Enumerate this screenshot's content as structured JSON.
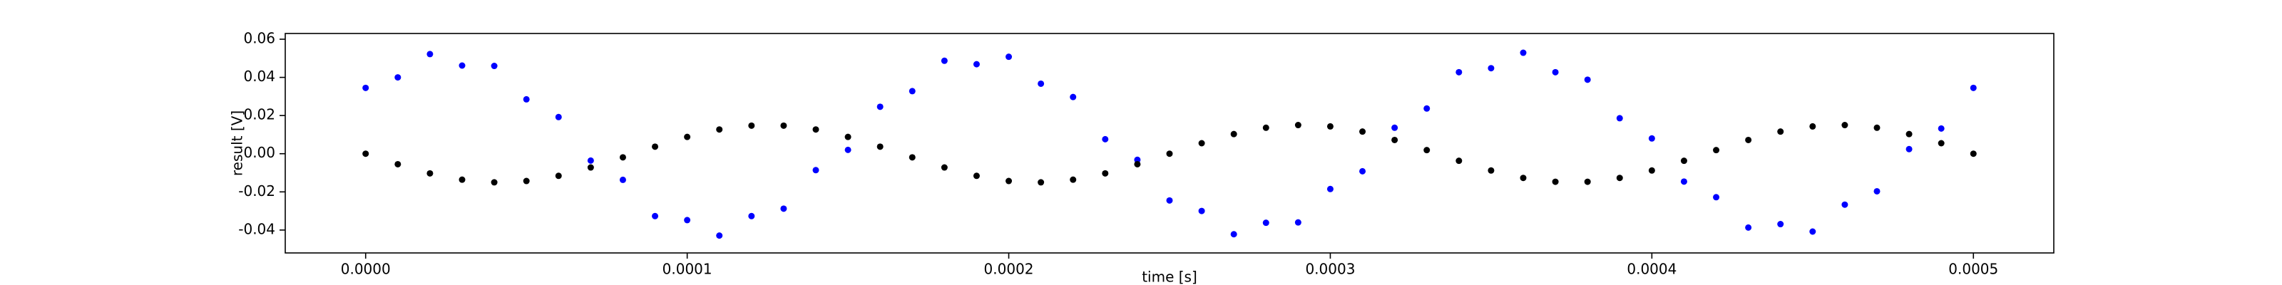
{
  "chart_data": {
    "type": "scatter",
    "xlabel": "time [s]",
    "ylabel": "result [V]",
    "x": [
      0,
      1e-05,
      2e-05,
      3e-05,
      4e-05,
      5e-05,
      6e-05,
      7e-05,
      8e-05,
      9e-05,
      0.0001,
      0.00011,
      0.00012,
      0.00013,
      0.00014,
      0.00015,
      0.00016,
      0.00017,
      0.00018,
      0.00019,
      0.0002,
      0.00021,
      0.00022,
      0.00023,
      0.00024,
      0.00025,
      0.00026,
      0.00027,
      0.00028,
      0.00029,
      0.0003,
      0.00031,
      0.00032,
      0.00033,
      0.00034,
      0.00035,
      0.00036,
      0.00037,
      0.00038,
      0.00039,
      0.0004,
      0.00041,
      0.00042,
      0.00043,
      0.00044,
      0.00045,
      0.00046,
      0.00047,
      0.00048,
      0.00049,
      0.0005
    ],
    "series": [
      {
        "color": "#0000ff",
        "values": [
          0.0345,
          0.04,
          0.0522,
          0.0462,
          0.046,
          0.0285,
          0.0192,
          -0.0036,
          -0.0137,
          -0.0327,
          -0.0348,
          -0.0429,
          -0.0327,
          -0.0288,
          -0.0086,
          0.002,
          0.0246,
          0.0328,
          0.0487,
          0.0469,
          0.0508,
          0.0367,
          0.0297,
          0.0076,
          -0.0032,
          -0.0245,
          -0.03,
          -0.0422,
          -0.0362,
          -0.036,
          -0.0185,
          -0.0092,
          0.0136,
          0.0237,
          0.0427,
          0.0448,
          0.0529,
          0.0427,
          0.0388,
          0.0186,
          0.008,
          -0.0146,
          -0.0228,
          -0.0387,
          -0.0369,
          -0.0408,
          -0.0267,
          -0.0197,
          0.0024,
          0.0132,
          0.0345
        ]
      },
      {
        "color": "#000000",
        "values": [
          0,
          -0.0055,
          -0.0103,
          -0.0136,
          -0.015,
          -0.0143,
          -0.0116,
          -0.0072,
          -0.0019,
          0.0037,
          0.0088,
          0.0127,
          0.0147,
          0.0147,
          0.0127,
          0.0088,
          0.0037,
          -0.0019,
          -0.0072,
          -0.0116,
          -0.0143,
          -0.015,
          -0.0136,
          -0.0103,
          -0.0055,
          0,
          0.0055,
          0.0103,
          0.0136,
          0.015,
          0.0143,
          0.0116,
          0.0072,
          0.0019,
          -0.0037,
          -0.0088,
          -0.0127,
          -0.0147,
          -0.0147,
          -0.0127,
          -0.0088,
          -0.0037,
          0.0019,
          0.0072,
          0.0116,
          0.0143,
          0.015,
          0.0136,
          0.0103,
          0.0055,
          0
        ]
      }
    ],
    "xlim": [
      -2.5e-05,
      0.000525
    ],
    "xticks": [
      {
        "value": 0,
        "label": "0.0000"
      },
      {
        "value": 0.0001,
        "label": "0.0001"
      },
      {
        "value": 0.0002,
        "label": "0.0002"
      },
      {
        "value": 0.0003,
        "label": "0.0003"
      },
      {
        "value": 0.0004,
        "label": "0.0004"
      },
      {
        "value": 0.0005,
        "label": "0.0005"
      }
    ],
    "ylim": [
      -0.052,
      0.063
    ],
    "yticks": [
      -0.04,
      -0.02,
      {
        "value": 0,
        "label": "0.00"
      },
      0.02,
      0.04,
      0.06
    ],
    "grid": false
  }
}
